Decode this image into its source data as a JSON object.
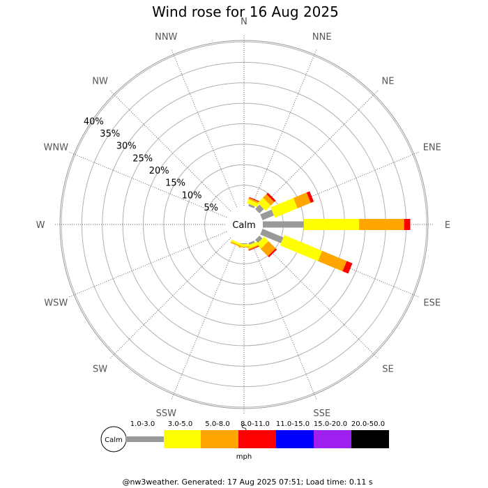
{
  "chart_data": {
    "type": "wind-rose",
    "title": "Wind rose for 16 Aug 2025",
    "directions": [
      "N",
      "NNE",
      "NE",
      "ENE",
      "E",
      "ESE",
      "SE",
      "SSE",
      "S",
      "SSW",
      "SW",
      "WSW",
      "W",
      "WNW",
      "NW",
      "NNW"
    ],
    "radial_ticks": [
      "5%",
      "10%",
      "15%",
      "20%",
      "25%",
      "30%",
      "35%",
      "40%"
    ],
    "radial_max": 40,
    "calm_label": "Calm",
    "unit_label": "mph",
    "speed_bins": [
      {
        "label": "1.0-3.0",
        "color": "#999999"
      },
      {
        "label": "3.0-5.0",
        "color": "#ffff00"
      },
      {
        "label": "5.0-8.0",
        "color": "#ffa500"
      },
      {
        "label": "8.0-11.0",
        "color": "#ff0000"
      },
      {
        "label": "11.0-15.0",
        "color": "#0000ff"
      },
      {
        "label": "15.0-20.0",
        "color": "#a020f0"
      },
      {
        "label": "20.0-50.0",
        "color": "#000000"
      }
    ],
    "series": [
      {
        "direction": "N",
        "values": [
          0,
          0,
          0,
          0,
          0,
          0,
          0
        ]
      },
      {
        "direction": "NNE",
        "values": [
          0.5,
          1.0,
          0.4,
          0.2,
          0,
          0,
          0
        ]
      },
      {
        "direction": "NE",
        "values": [
          1.5,
          1.8,
          1.2,
          0.5,
          0,
          0,
          0
        ]
      },
      {
        "direction": "ENE",
        "values": [
          3.0,
          6.0,
          3.5,
          0.8,
          0,
          0,
          0
        ]
      },
      {
        "direction": "E",
        "values": [
          10.0,
          13.5,
          11.0,
          1.5,
          0,
          0,
          0
        ]
      },
      {
        "direction": "ESE",
        "values": [
          5.5,
          10.0,
          6.5,
          1.5,
          0,
          0,
          0
        ]
      },
      {
        "direction": "SE",
        "values": [
          1.0,
          1.5,
          2.5,
          0.4,
          0,
          0,
          0
        ]
      },
      {
        "direction": "SSE",
        "values": [
          0.5,
          0.8,
          0.3,
          0.2,
          0,
          0,
          0
        ]
      },
      {
        "direction": "S",
        "values": [
          0.2,
          0.6,
          0.2,
          0,
          0,
          0,
          0
        ]
      },
      {
        "direction": "SSW",
        "values": [
          0,
          0.5,
          0.3,
          0,
          0,
          0,
          0
        ]
      },
      {
        "direction": "SW",
        "values": [
          0,
          0,
          0,
          0,
          0,
          0,
          0
        ]
      },
      {
        "direction": "WSW",
        "values": [
          0,
          0,
          0,
          0,
          0,
          0,
          0
        ]
      },
      {
        "direction": "W",
        "values": [
          0,
          0,
          0,
          0,
          0,
          0,
          0
        ]
      },
      {
        "direction": "WNW",
        "values": [
          0,
          0,
          0,
          0,
          0,
          0,
          0
        ]
      },
      {
        "direction": "NW",
        "values": [
          0,
          0,
          0,
          0,
          0,
          0,
          0
        ]
      },
      {
        "direction": "NNW",
        "values": [
          0,
          0,
          0,
          0,
          0,
          0,
          0
        ]
      }
    ]
  },
  "footer": "@nw3weather. Generated: 17 Aug 2025 07:51; Load time: 0.11 s"
}
